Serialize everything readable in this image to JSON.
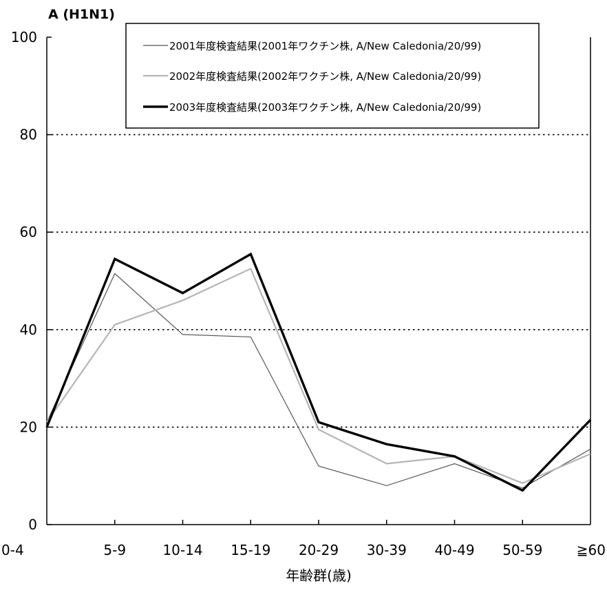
{
  "chart_data": {
    "type": "line",
    "title": "A (H1N1)",
    "xlabel": "年齢群(歳)",
    "ylabel": "",
    "categories": [
      "0-4",
      "5-9",
      "10-14",
      "15-19",
      "20-29",
      "30-39",
      "40-49",
      "50-59",
      "≧60"
    ],
    "ylim": [
      0,
      100
    ],
    "yticks": [
      0,
      20,
      40,
      60,
      80,
      100
    ],
    "grid": "horizontal dotted at 20, 40, 60, 80",
    "legend_position": "top-right",
    "series": [
      {
        "name": "2001年度検査結果(2001年ワクチン株, A/New Caledonia/20/99)",
        "color": "#555555",
        "style": "thin",
        "values": [
          21,
          51.5,
          39,
          38.5,
          12,
          8,
          12.5,
          7.5,
          15.5
        ]
      },
      {
        "name": "2002年度検査結果(2002年ワクチン株, A/New Caledonia/20/99)",
        "color": "#b5b5b5",
        "style": "medium",
        "values": [
          21,
          41,
          46,
          52.5,
          19.5,
          12.5,
          14,
          8.5,
          14.5
        ]
      },
      {
        "name": "2003年度検査結果(2003年ワクチン株, A/New Caledonia/20/99)",
        "color": "#000000",
        "style": "thick",
        "values": [
          20,
          54.5,
          47.5,
          55.5,
          21,
          16.5,
          14,
          7,
          21.5
        ]
      }
    ]
  }
}
